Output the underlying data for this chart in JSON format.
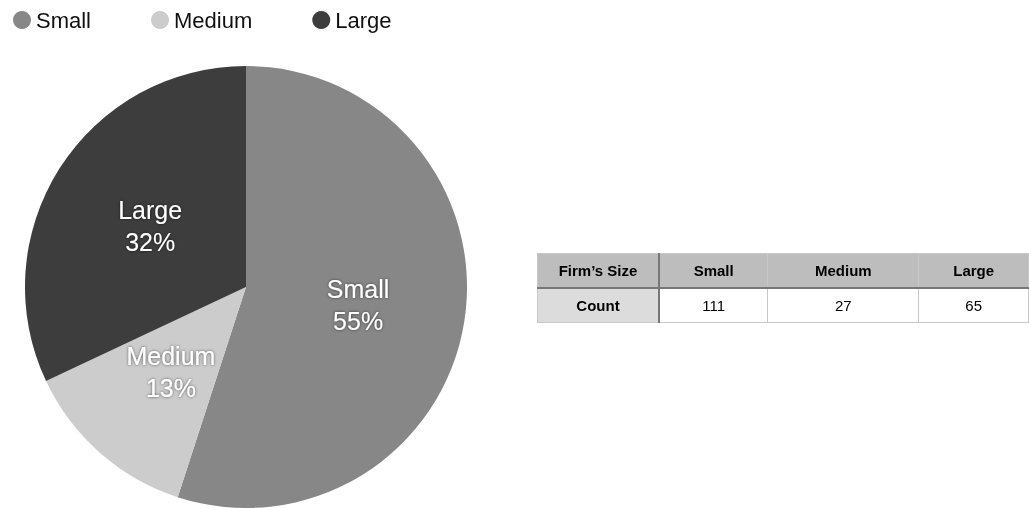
{
  "chart_data": [
    {
      "type": "pie",
      "categories": [
        "Small",
        "Medium",
        "Large"
      ],
      "values": [
        55,
        13,
        32
      ],
      "colors": [
        "#878787",
        "#cccccc",
        "#3d3d3d"
      ],
      "value_labels": [
        "55%",
        "13%",
        "32%"
      ],
      "legend": "top left"
    },
    {
      "type": "other",
      "categories": [
        "Small",
        "Medium",
        "Large"
      ],
      "values": [
        111,
        27,
        65
      ],
      "data_labels": true,
      "xlabel": "Firm’s Size",
      "ylabel": "Count"
    }
  ]
}
